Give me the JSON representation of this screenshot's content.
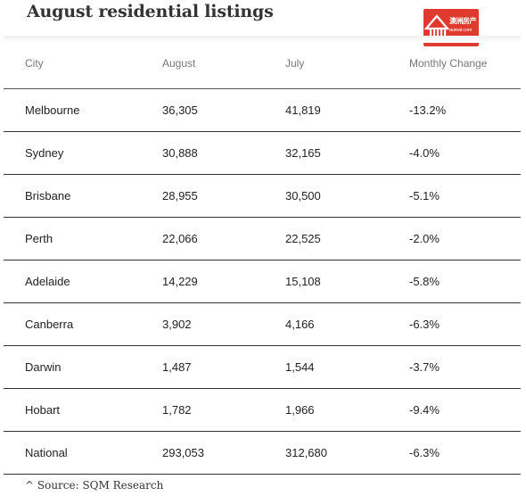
{
  "title": "August residential listings",
  "logo": {
    "name": "house-logo-icon",
    "text_cn": "澳洲房产",
    "text_url": "aureal.com",
    "color": "#e03a2e"
  },
  "table": {
    "headers": [
      "City",
      "August",
      "July",
      "Monthly Change"
    ],
    "rows": [
      [
        "Melbourne",
        "36,305",
        "41,819",
        "-13.2%"
      ],
      [
        "Sydney",
        "30,888",
        "32,165",
        "-4.0%"
      ],
      [
        "Brisbane",
        "28,955",
        "30,500",
        "-5.1%"
      ],
      [
        "Perth",
        "22,066",
        "22,525",
        "-2.0%"
      ],
      [
        "Adelaide",
        "14,229",
        "15,108",
        "-5.8%"
      ],
      [
        "Canberra",
        "3,902",
        "4,166",
        "-6.3%"
      ],
      [
        "Darwin",
        "1,487",
        "1,544",
        "-3.7%"
      ],
      [
        "Hobart",
        "1,782",
        "1,966",
        "-9.4%"
      ],
      [
        "National",
        "293,053",
        "312,680",
        "-6.3%"
      ]
    ]
  },
  "source": "^ Source: SQM Research"
}
